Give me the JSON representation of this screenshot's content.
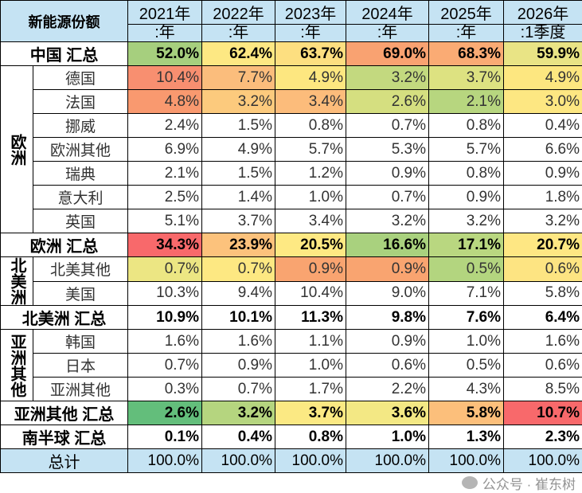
{
  "header": {
    "corner": "新能源份额",
    "years": [
      {
        "top": "2021年",
        "bottom": ":年"
      },
      {
        "top": "2022年",
        "bottom": ":年"
      },
      {
        "top": "2023年",
        "bottom": ":年"
      },
      {
        "top": "2024年",
        "bottom": ":年"
      },
      {
        "top": "2025年",
        "bottom": ":年"
      },
      {
        "top": "2026年",
        "bottom": ":1季度"
      }
    ]
  },
  "rows": [
    {
      "type": "total",
      "label": "中国 汇总",
      "values": [
        "52.0%",
        "62.4%",
        "63.7%",
        "69.0%",
        "68.3%",
        "59.9%"
      ],
      "colors": [
        "#a6cf7e",
        "#fde883",
        "#fddf80",
        "#f9a271",
        "#faab74",
        "#e9e485"
      ]
    },
    {
      "type": "item",
      "group": "欧洲",
      "span": 7,
      "label": "德国",
      "values": [
        "10.4%",
        "7.7%",
        "4.9%",
        "3.2%",
        "3.7%",
        "4.9%"
      ],
      "colors": [
        "#f88f70",
        "#fbbd7c",
        "#fde780",
        "#c3d97f",
        "#dde281",
        "#fde780"
      ]
    },
    {
      "type": "item",
      "label": "法国",
      "values": [
        "4.8%",
        "3.2%",
        "3.4%",
        "2.6%",
        "2.1%",
        "3.0%"
      ],
      "colors": [
        "#f9996f",
        "#fcca7d",
        "#fcbc7b",
        "#d5df80",
        "#b7d67f",
        "#fde782"
      ]
    },
    {
      "type": "item",
      "label": "挪威",
      "values": [
        "2.4%",
        "1.5%",
        "0.8%",
        "0.7%",
        "0.8%",
        "0.4%"
      ],
      "colors": []
    },
    {
      "type": "item",
      "label": "欧洲其他",
      "values": [
        "6.9%",
        "4.9%",
        "5.7%",
        "5.3%",
        "5.7%",
        "6.6%"
      ],
      "colors": []
    },
    {
      "type": "item",
      "label": "瑞典",
      "values": [
        "2.1%",
        "1.5%",
        "1.2%",
        "0.9%",
        "0.8%",
        "0.9%"
      ],
      "colors": []
    },
    {
      "type": "item",
      "label": "意大利",
      "values": [
        "2.5%",
        "1.4%",
        "1.0%",
        "0.7%",
        "0.9%",
        "1.8%"
      ],
      "colors": []
    },
    {
      "type": "item",
      "label": "英国",
      "values": [
        "5.1%",
        "3.7%",
        "3.4%",
        "3.2%",
        "3.2%",
        "3.2%"
      ],
      "colors": []
    },
    {
      "type": "total",
      "label": "欧洲 汇总",
      "values": [
        "34.3%",
        "23.9%",
        "20.5%",
        "16.6%",
        "17.1%",
        "20.7%"
      ],
      "colors": [
        "#f8696b",
        "#fcc27c",
        "#fee983",
        "#a9d17e",
        "#b9d780",
        "#fee783"
      ]
    },
    {
      "type": "item",
      "group": "北美洲",
      "span": 2,
      "label": "北美其他",
      "values": [
        "0.7%",
        "0.7%",
        "0.9%",
        "0.9%",
        "0.5%",
        "0.6%"
      ],
      "colors": [
        "#ece683",
        "#fde882",
        "#f9a470",
        "#f9a470",
        "#b3d57f",
        "#fde482"
      ]
    },
    {
      "type": "item",
      "label": "美国",
      "values": [
        "10.3%",
        "9.4%",
        "10.4%",
        "9.0%",
        "7.1%",
        "5.8%"
      ],
      "colors": []
    },
    {
      "type": "total",
      "label": "北美洲 汇总",
      "values": [
        "10.9%",
        "10.1%",
        "11.3%",
        "9.8%",
        "7.6%",
        "6.4%"
      ],
      "colors": []
    },
    {
      "type": "item",
      "group": "亚洲其他",
      "span": 3,
      "label": "韩国",
      "values": [
        "1.6%",
        "1.6%",
        "1.1%",
        "0.9%",
        "1.0%",
        "1.6%"
      ],
      "colors": []
    },
    {
      "type": "item",
      "label": "日本",
      "values": [
        "0.7%",
        "0.9%",
        "1.0%",
        "0.6%",
        "0.5%",
        "0.6%"
      ],
      "colors": []
    },
    {
      "type": "item",
      "label": "亚洲其他",
      "values": [
        "0.3%",
        "0.7%",
        "1.7%",
        "2.2%",
        "4.3%",
        "8.5%"
      ],
      "colors": []
    },
    {
      "type": "total",
      "label": "亚洲其他 汇总",
      "values": [
        "2.6%",
        "3.2%",
        "3.7%",
        "3.6%",
        "5.8%",
        "10.7%"
      ],
      "colors": [
        "#63be7b",
        "#b5d57f",
        "#fbe983",
        "#f3e884",
        "#fcbf7b",
        "#f8696b"
      ]
    },
    {
      "type": "total",
      "label": "南半球 汇总",
      "values": [
        "0.1%",
        "0.4%",
        "0.8%",
        "1.0%",
        "1.3%",
        "2.3%"
      ],
      "colors": []
    },
    {
      "type": "grand",
      "label": "总计",
      "values": [
        "100.0%",
        "100.0%",
        "100.0%",
        "100.0%",
        "100.0%",
        "100.0%"
      ],
      "colors": []
    }
  ],
  "watermark": "公众号 · 崔东树"
}
